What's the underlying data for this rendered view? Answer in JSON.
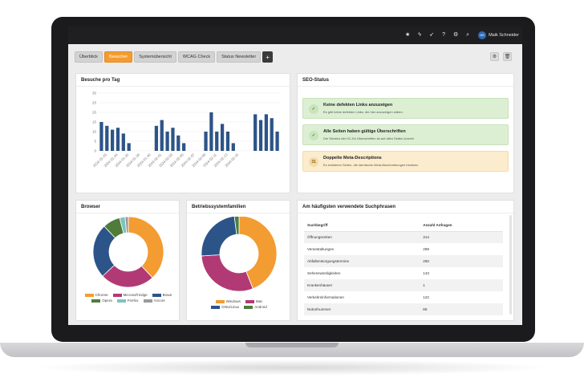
{
  "topbar": {
    "icons": [
      "star-icon",
      "bolt-icon",
      "rocket-icon",
      "help-icon",
      "gear-icon",
      "search-icon"
    ],
    "user_initials": "MS",
    "user_name": "Maik Schneider"
  },
  "tabs": [
    {
      "label": "Überblick",
      "active": false
    },
    {
      "label": "Besucher",
      "active": true
    },
    {
      "label": "Systemübersicht",
      "active": false
    },
    {
      "label": "WCAG Check",
      "active": false
    },
    {
      "label": "Status Newsletter",
      "active": false
    }
  ],
  "tab_add_label": "+",
  "visits": {
    "title": "Besuche pro Tag",
    "chart_data": {
      "type": "bar",
      "ylim": [
        0,
        30
      ],
      "yticks": [
        0,
        5,
        10,
        15,
        20,
        25,
        30
      ],
      "tick_labels": [
        "2024-01-20",
        "2024-01-24",
        "2024-01-26",
        "2024-01-28",
        "2024-01-30",
        "2024-02-01",
        "2024-02-03",
        "2024-02-05",
        "2024-02-07",
        "2024-02-09",
        "2024-02-11",
        "2024-02-13",
        "2024-02-15"
      ],
      "values": [
        15,
        13,
        11,
        12,
        9,
        4,
        0,
        0,
        0,
        0,
        13,
        16,
        10,
        12,
        8,
        4,
        0,
        0,
        0,
        10,
        20,
        10,
        14,
        10,
        4,
        0,
        0,
        0,
        19,
        16,
        19,
        17,
        10
      ],
      "color": "#2c5488"
    }
  },
  "seo": {
    "title": "SEO-Status",
    "items": [
      {
        "badge": "✓",
        "heading": "Keine defekten Links anzuzeigen",
        "text": "Es gibt keine defekten Links, die hier anzuzeigen wären.",
        "bg": "#dcefd3",
        "border": "#c6e2b8",
        "badge_bg": "#c9e4bb",
        "badge_color": "#3e7a2b"
      },
      {
        "badge": "✓",
        "heading": "Alle Seiten haben gültige Überschriften",
        "text": "Die Struktur der H1-H4 Überschriften ist auf allen Seiten korrekt",
        "bg": "#dcefd3",
        "border": "#c6e2b8",
        "badge_bg": "#c9e4bb",
        "badge_color": "#3e7a2b"
      },
      {
        "badge": "31",
        "heading": "Doppelte Meta-Descriptions",
        "text": "Es existieren Seiten, die identische Meta-Beschreibungen besitzen",
        "bg": "#fbeccd",
        "border": "#f1dcb0",
        "badge_bg": "#f5dba9",
        "badge_color": "#8a5a10"
      }
    ]
  },
  "browser": {
    "title": "Browser",
    "chart_data": {
      "type": "pie",
      "slices": [
        {
          "name": "Chrome",
          "value": 38,
          "color": "#f39c32"
        },
        {
          "name": "Microsoft Edge",
          "value": 25,
          "color": "#b23a74"
        },
        {
          "name": "Brave",
          "value": 25,
          "color": "#2c5488"
        },
        {
          "name": "Opera",
          "value": 8,
          "color": "#4f7d39"
        },
        {
          "name": "Firefox",
          "value": 2.5,
          "color": "#7cc3bd"
        },
        {
          "name": "Ancore",
          "value": 1.5,
          "color": "#9a9a9a"
        }
      ]
    }
  },
  "os": {
    "title": "Betriebssystemfamilien",
    "chart_data": {
      "type": "pie",
      "slices": [
        {
          "name": "Windows",
          "value": 44,
          "color": "#f39c32"
        },
        {
          "name": "Mac",
          "value": 30,
          "color": "#b23a74"
        },
        {
          "name": "GNU/Linux",
          "value": 24,
          "color": "#2c5488"
        },
        {
          "name": "Android",
          "value": 2,
          "color": "#4f7d39"
        }
      ]
    }
  },
  "keywords": {
    "title": "Am häufigsten verwendete Suchphrasen",
    "col_term": "Suchbegriff",
    "col_count": "Anzahl Anfragen",
    "rows": [
      {
        "term": "Öffnungszeiten",
        "count": "314"
      },
      {
        "term": "Veranstaltungen",
        "count": "289"
      },
      {
        "term": "Abfallentsorgungstermine",
        "count": "250"
      },
      {
        "term": "Sehenswürdigkeiten",
        "count": "143"
      },
      {
        "term": "Krankenhäuser",
        "count": "1"
      },
      {
        "term": "Verkehrsinformationen",
        "count": "122"
      },
      {
        "term": "Notrufnummer",
        "count": "86"
      }
    ]
  }
}
